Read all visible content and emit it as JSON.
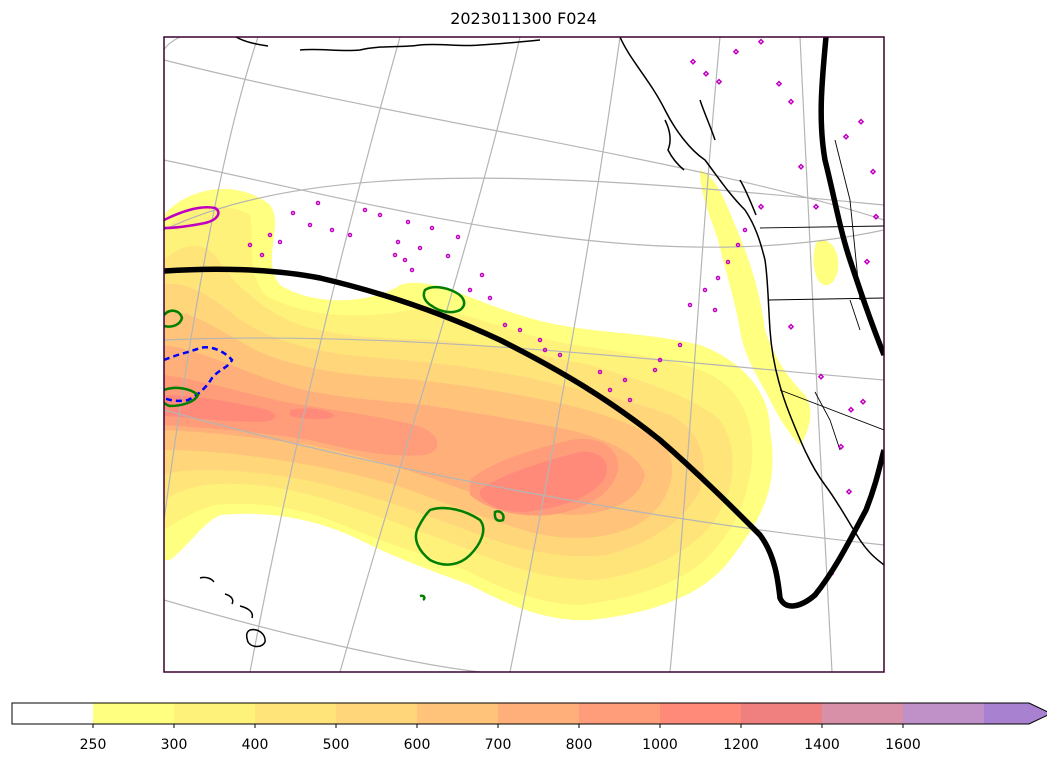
{
  "title": "2023011300 F024",
  "colorbar": {
    "tick_labels": [
      "250",
      "300",
      "400",
      "500",
      "600",
      "700",
      "800",
      "1000",
      "1200",
      "1400",
      "1600"
    ],
    "colors": [
      "#ffffff",
      "#ffff80",
      "#fff27a",
      "#ffe47a",
      "#ffd67a",
      "#ffc47a",
      "#ffb07a",
      "#ff9c7a",
      "#ff8a7a",
      "#f08080",
      "#d890a8",
      "#c090c8",
      "#a882d0"
    ],
    "extend": "max"
  },
  "map": {
    "projection": "Lambert conformal",
    "region": "North Pacific to western North America",
    "features": [
      "coastlines",
      "state-borders",
      "graticule",
      "filled-contours",
      "thick-black-contour",
      "green-contours",
      "blue-dashed-contour",
      "magenta-markers"
    ]
  }
}
